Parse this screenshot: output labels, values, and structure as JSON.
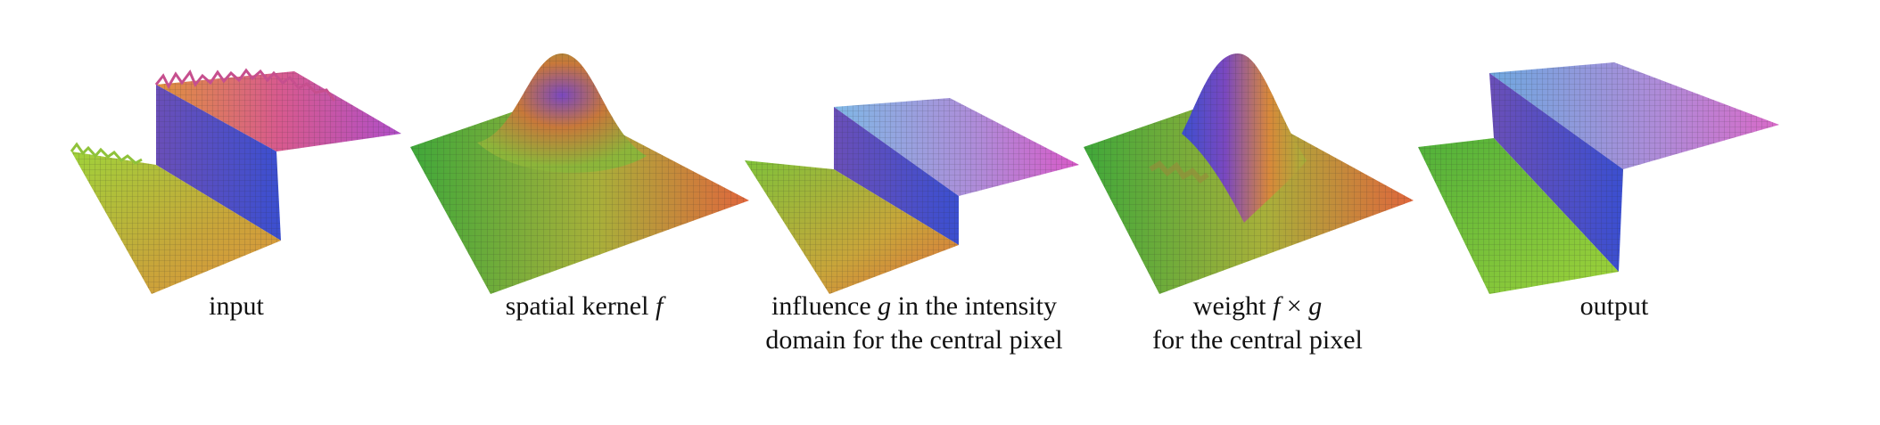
{
  "colors": {
    "green": "#3fa83a",
    "yellow_green": "#9fd23a",
    "orange": "#e0923c",
    "pink": "#d85a8e",
    "purple": "#6a4fb8",
    "blue": "#3b4fd0",
    "light_blue": "#7fb8e6",
    "grid_line": "#2a2a2a"
  },
  "panels": [
    {
      "id": "input",
      "icon": "noisy-step-surface-icon",
      "caption_lines": [
        [
          {
            "t": "input"
          }
        ]
      ]
    },
    {
      "id": "spatial-kernel",
      "icon": "gaussian-bump-surface-icon",
      "caption_lines": [
        [
          {
            "t": "spatial kernel "
          },
          {
            "t": "f",
            "math": true
          }
        ]
      ]
    },
    {
      "id": "influence",
      "icon": "influence-step-surface-icon",
      "caption_lines": [
        [
          {
            "t": "influence "
          },
          {
            "t": "g",
            "math": true
          },
          {
            "t": " in the intensity"
          }
        ],
        [
          {
            "t": "domain for the central pixel"
          }
        ]
      ]
    },
    {
      "id": "weight",
      "icon": "half-gaussian-surface-icon",
      "caption_lines": [
        [
          {
            "t": "weight "
          },
          {
            "t": "f",
            "math": true
          },
          {
            "t": " × "
          },
          {
            "t": "g",
            "math": true
          }
        ],
        [
          {
            "t": "for the central pixel"
          }
        ]
      ]
    },
    {
      "id": "output",
      "icon": "smoothed-step-surface-icon",
      "caption_lines": [
        [
          {
            "t": "output"
          }
        ]
      ]
    }
  ]
}
